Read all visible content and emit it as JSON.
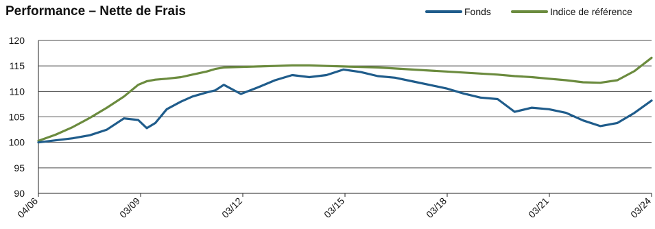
{
  "chart_data": {
    "type": "line",
    "title": "Performance – Nette de Frais",
    "xlabel": "",
    "ylabel": "",
    "x_tick_labels": [
      "04/06",
      "03/09",
      "03/12",
      "03/15",
      "03/18",
      "03/21",
      "03/24"
    ],
    "x": [
      "2006-04",
      "2006-10",
      "2007-04",
      "2007-10",
      "2008-04",
      "2008-10",
      "2009-03",
      "2009-06",
      "2009-09",
      "2010-01",
      "2010-06",
      "2010-10",
      "2011-03",
      "2011-06",
      "2011-09",
      "2012-03",
      "2012-09",
      "2013-03",
      "2013-09",
      "2014-03",
      "2014-09",
      "2015-03",
      "2015-09",
      "2016-03",
      "2016-09",
      "2017-03",
      "2017-09",
      "2018-03",
      "2018-09",
      "2019-03",
      "2019-09",
      "2020-03",
      "2020-09",
      "2021-03",
      "2021-09",
      "2022-03",
      "2022-09",
      "2023-03",
      "2023-09",
      "2024-03"
    ],
    "ylim": [
      90,
      120
    ],
    "y_ticks": [
      90,
      95,
      100,
      105,
      110,
      115,
      120
    ],
    "grid": true,
    "legend_position": "top-right",
    "series": [
      {
        "name": "Fonds",
        "color": "#1f5c8b",
        "values": [
          100.0,
          100.4,
          100.8,
          101.4,
          102.5,
          104.7,
          104.4,
          102.8,
          103.8,
          106.5,
          108.0,
          109.0,
          109.8,
          110.2,
          111.3,
          109.5,
          110.8,
          112.2,
          113.2,
          112.8,
          113.2,
          114.3,
          113.8,
          113.0,
          112.7,
          112.0,
          111.3,
          110.6,
          109.6,
          108.8,
          108.5,
          106.0,
          106.8,
          106.5,
          105.8,
          104.3,
          103.2,
          103.8,
          105.8,
          108.2
        ]
      },
      {
        "name": "Indice de référence",
        "color": "#6b8b3e",
        "values": [
          100.3,
          101.5,
          103.0,
          104.8,
          106.8,
          109.0,
          111.3,
          112.0,
          112.3,
          112.5,
          112.8,
          113.3,
          113.9,
          114.4,
          114.7,
          114.8,
          114.9,
          115.0,
          115.1,
          115.1,
          115.0,
          114.9,
          114.8,
          114.7,
          114.5,
          114.3,
          114.1,
          113.9,
          113.7,
          113.5,
          113.3,
          113.0,
          112.8,
          112.5,
          112.2,
          111.8,
          111.7,
          112.2,
          114.0,
          116.6
        ]
      }
    ]
  }
}
